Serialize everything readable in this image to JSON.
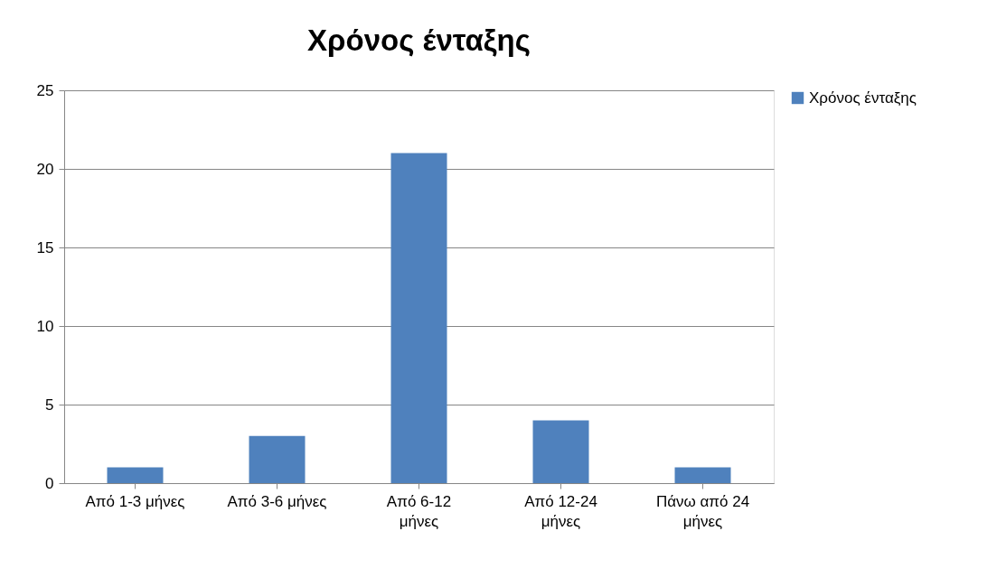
{
  "chart_data": {
    "type": "bar",
    "title": "Χρόνος ένταξης",
    "categories": [
      "Από 1-3 μήνες",
      "Από 3-6 μήνες",
      "Από 6-12 μήνες",
      "Από 12-24 μήνες",
      "Πάνω από 24 μήνες"
    ],
    "series": [
      {
        "name": "Χρόνος ένταξης",
        "color": "#4f81bd",
        "values": [
          1,
          3,
          21,
          4,
          1
        ]
      }
    ],
    "ylim": [
      0,
      25
    ],
    "yticks": [
      0,
      5,
      10,
      15,
      20,
      25
    ],
    "grid": "y",
    "legend": "right"
  }
}
